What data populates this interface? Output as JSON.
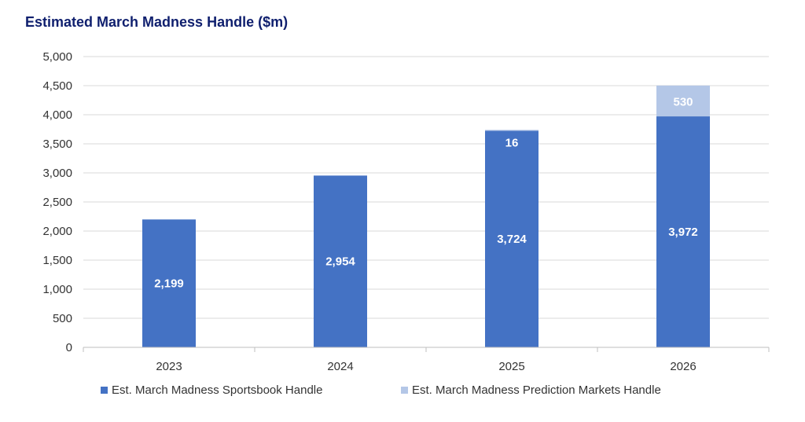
{
  "chart_data": {
    "type": "bar",
    "stacked": true,
    "title": "Estimated March Madness Handle ($m)",
    "xlabel": "",
    "ylabel": "",
    "categories": [
      "2023",
      "2024",
      "2025",
      "2026"
    ],
    "ylim": [
      0,
      5000
    ],
    "yticks": [
      0,
      500,
      1000,
      1500,
      2000,
      2500,
      3000,
      3500,
      4000,
      4500,
      5000
    ],
    "ytick_labels": [
      "0",
      "500",
      "1,000",
      "1,500",
      "2,000",
      "2,500",
      "3,000",
      "3,500",
      "4,000",
      "4,500",
      "5,000"
    ],
    "grid": true,
    "legend_position": "bottom",
    "series": [
      {
        "name": "Est. March Madness Sportsbook Handle",
        "color": "#4472c4",
        "values": [
          2199,
          2954,
          3724,
          3972
        ],
        "labels": [
          "2,199",
          "2,954",
          "3,724",
          "3,972"
        ]
      },
      {
        "name": "Est. March Madness Prediction Markets Handle",
        "color": "#b4c7e7",
        "values": [
          0,
          0,
          16,
          530
        ],
        "labels": [
          "",
          "",
          "16",
          "530"
        ]
      }
    ]
  }
}
